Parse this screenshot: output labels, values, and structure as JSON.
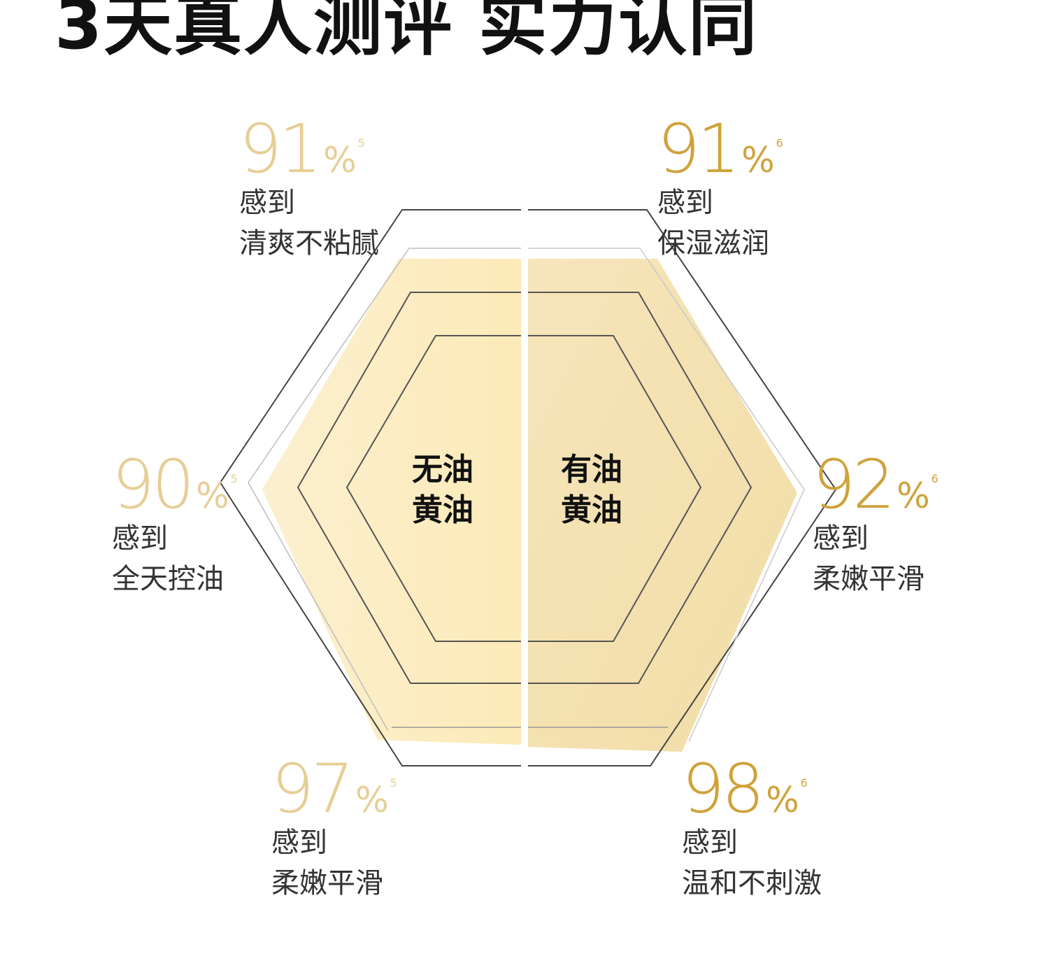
{
  "title": "3天真人测评 实力认同",
  "colors": {
    "left_accent": "#E6CE95",
    "right_accent": "#CFA23B",
    "left_fill": "#FCEFC7",
    "right_fill": "#F5E2B1"
  },
  "center_labels": {
    "left_line1": "无油",
    "left_line2": "黄油",
    "right_line1": "有油",
    "right_line2": "黄油"
  },
  "chart_data": {
    "type": "radar",
    "groups": [
      {
        "name": "无油黄油",
        "stats": [
          {
            "value": "91",
            "unit": "%",
            "note": "5",
            "line1": "感到",
            "line2": "清爽不粘腻"
          },
          {
            "value": "90",
            "unit": "%",
            "note": "5",
            "line1": "感到",
            "line2": "全天控油"
          },
          {
            "value": "97",
            "unit": "%",
            "note": "5",
            "line1": "感到",
            "line2": "柔嫩平滑"
          }
        ]
      },
      {
        "name": "有油黄油",
        "stats": [
          {
            "value": "91",
            "unit": "%",
            "note": "6",
            "line1": "感到",
            "line2": "保湿滋润"
          },
          {
            "value": "92",
            "unit": "%",
            "note": "6",
            "line1": "感到",
            "line2": "柔嫩平滑"
          },
          {
            "value": "98",
            "unit": "%",
            "note": "6",
            "line1": "感到",
            "line2": "温和不刺激"
          }
        ]
      }
    ]
  }
}
